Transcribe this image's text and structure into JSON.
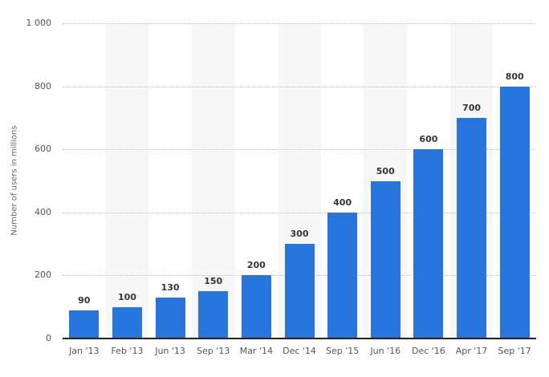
{
  "chart_data": {
    "type": "bar",
    "title": "",
    "xlabel": "",
    "ylabel": "Number of users in millions",
    "ylim": [
      0,
      1000
    ],
    "yticks": [
      0,
      200,
      400,
      600,
      800,
      1000
    ],
    "ytick_labels": [
      "0",
      "200",
      "400",
      "600",
      "800",
      "1 000"
    ],
    "grid": true,
    "legend": null,
    "categories": [
      "Jan '13",
      "Feb '13",
      "Jun '13",
      "Sep '13",
      "Mar '14",
      "Dec '14",
      "Sep '15",
      "Jun '16",
      "Dec '16",
      "Apr '17",
      "Sep '17"
    ],
    "values": [
      90,
      100,
      130,
      150,
      200,
      300,
      400,
      500,
      600,
      700,
      800
    ],
    "data_labels": [
      "90",
      "100",
      "130",
      "150",
      "200",
      "300",
      "400",
      "500",
      "600",
      "700",
      "800"
    ],
    "bar_color": "#2876dd"
  }
}
